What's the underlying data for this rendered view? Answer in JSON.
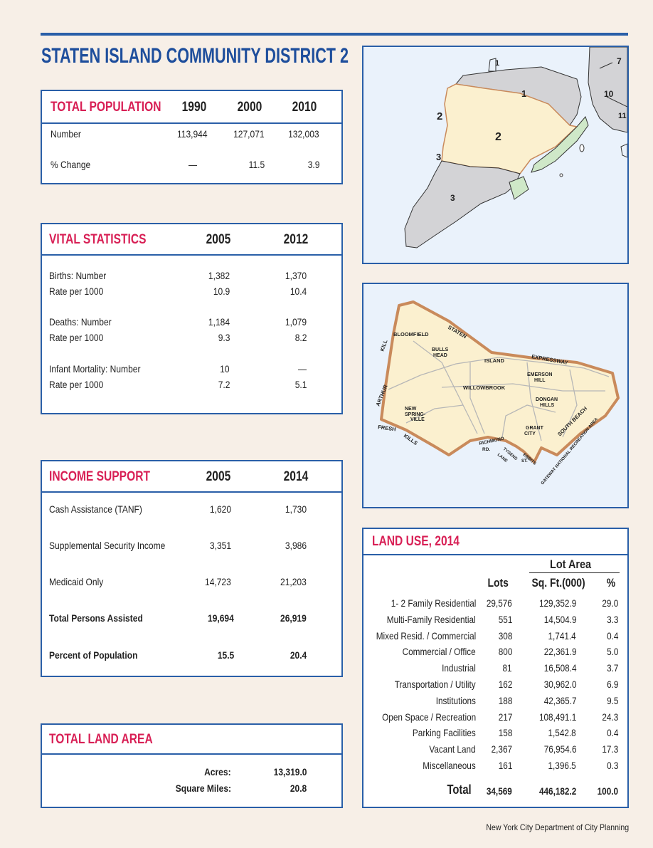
{
  "title": "STATEN ISLAND COMMUNITY DISTRICT 2",
  "total_population": {
    "heading": "TOTAL POPULATION",
    "years": [
      "1990",
      "2000",
      "2010"
    ],
    "rows": [
      {
        "label": "Number",
        "values": [
          "113,944",
          "127,071",
          "132,003"
        ]
      },
      {
        "label": "% Change",
        "values": [
          "—",
          "11.5",
          "3.9"
        ]
      }
    ]
  },
  "vital_statistics": {
    "heading": "VITAL STATISTICS",
    "years": [
      "2005",
      "2012"
    ],
    "groups": [
      {
        "label1": "Births: Number",
        "label2": "Rate per 1000",
        "v2005": [
          "1,382",
          "10.9"
        ],
        "v2012": [
          "1,370",
          "10.4"
        ]
      },
      {
        "label1": "Deaths: Number",
        "label2": "Rate per 1000",
        "v2005": [
          "1,184",
          "9.3"
        ],
        "v2012": [
          "1,079",
          "8.2"
        ]
      },
      {
        "label1": "Infant Mortality: Number",
        "label2": "Rate per 1000",
        "v2005": [
          "10",
          "7.2"
        ],
        "v2012": [
          "—",
          "5.1"
        ]
      }
    ]
  },
  "income_support": {
    "heading": "INCOME SUPPORT",
    "years": [
      "2005",
      "2014"
    ],
    "rows": [
      {
        "label": "Cash Assistance (TANF)",
        "v1": "1,620",
        "v2": "1,730"
      },
      {
        "label": "Supplemental Security Income",
        "v1": "3,351",
        "v2": "3,986"
      },
      {
        "label": "Medicaid Only",
        "v1": "14,723",
        "v2": "21,203"
      },
      {
        "label": "Total Persons Assisted",
        "v1": "19,694",
        "v2": "26,919"
      },
      {
        "label": "Percent of Population",
        "v1": "15.5",
        "v2": "20.4"
      }
    ]
  },
  "total_land_area": {
    "heading": "TOTAL LAND AREA",
    "acres_label": "Acres:",
    "acres_value": "13,319.0",
    "sqmi_label": "Square Miles:",
    "sqmi_value": "20.8"
  },
  "land_use": {
    "heading": "LAND USE, 2014",
    "lot_area_header": "Lot Area",
    "col_lots": "Lots",
    "col_sqft": "Sq. Ft.(000)",
    "col_pct": "%",
    "rows": [
      {
        "label": "1- 2 Family Residential",
        "lots": "29,576",
        "sqft": "129,352.9",
        "pct": "29.0"
      },
      {
        "label": "Multi-Family Residential",
        "lots": "551",
        "sqft": "14,504.9",
        "pct": "3.3"
      },
      {
        "label": "Mixed Resid. / Commercial",
        "lots": "308",
        "sqft": "1,741.4",
        "pct": "0.4"
      },
      {
        "label": "Commercial / Office",
        "lots": "800",
        "sqft": "22,361.9",
        "pct": "5.0"
      },
      {
        "label": "Industrial",
        "lots": "81",
        "sqft": "16,508.4",
        "pct": "3.7"
      },
      {
        "label": "Transportation / Utility",
        "lots": "162",
        "sqft": "30,962.0",
        "pct": "6.9"
      },
      {
        "label": "Institutions",
        "lots": "188",
        "sqft": "42,365.7",
        "pct": "9.5"
      },
      {
        "label": "Open Space / Recreation",
        "lots": "217",
        "sqft": "108,491.1",
        "pct": "24.3"
      },
      {
        "label": "Parking Facilities",
        "lots": "158",
        "sqft": "1,542.8",
        "pct": "0.4"
      },
      {
        "label": "Vacant Land",
        "lots": "2,367",
        "sqft": "76,954.6",
        "pct": "17.3"
      },
      {
        "label": "Miscellaneous",
        "lots": "161",
        "sqft": "1,396.5",
        "pct": "0.3"
      }
    ],
    "total": {
      "label": "Total",
      "lots": "34,569",
      "sqft": "446,182.2",
      "pct": "100.0"
    }
  },
  "borough_map": {
    "labels": [
      "1",
      "2",
      "3",
      "2",
      "3",
      "1",
      "7",
      "10",
      "11"
    ]
  },
  "district_map": {
    "labels": [
      "BLOOMFIELD",
      "STATEN",
      "BULLS",
      "HEAD",
      "KILL",
      "ISLAND",
      "EXPRESSWAY",
      "EMERSON",
      "HILL",
      "WILLOWBROOK",
      "ARTHUR",
      "DONGAN",
      "HILLS",
      "NEW",
      "SPRING-",
      "VILLE",
      "GRANT",
      "CITY",
      "SOUTH BEACH",
      "FRESH",
      "KILLS",
      "RICHMOND",
      "RD.",
      "TYSENS",
      "LANE",
      "EBBITS",
      "ST.",
      "GATEWAY NATIONAL RECREATION AREA"
    ]
  },
  "footer": "New York City Department of City Planning",
  "colors": {
    "accent": "#d81f55",
    "border": "#2a5fa8",
    "title": "#1e4e9c",
    "background": "#f7efe7"
  }
}
